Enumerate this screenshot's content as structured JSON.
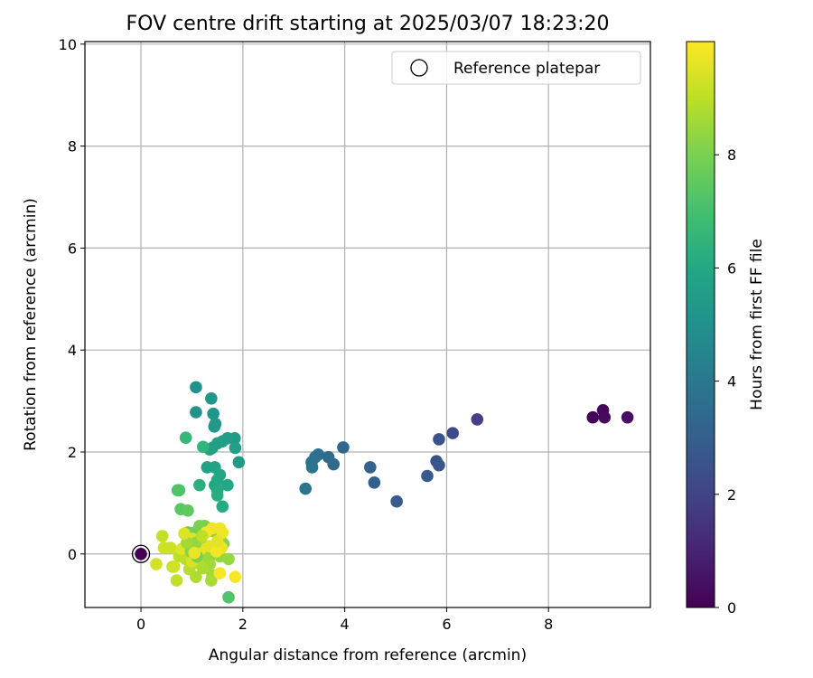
{
  "chart_data": {
    "type": "scatter",
    "title": "FOV centre drift starting at 2025/03/07 18:23:20",
    "xlabel": "Angular distance from reference (arcmin)",
    "ylabel": "Rotation from reference (arcmin)",
    "xlim": [
      -1.1,
      10.0
    ],
    "ylim": [
      -1.05,
      10.05
    ],
    "xticks": [
      0,
      2,
      4,
      6,
      8
    ],
    "yticks": [
      0,
      2,
      4,
      6,
      8,
      10
    ],
    "grid": true,
    "colormap": "viridis",
    "colorbar": {
      "label": "Hours from first FF file",
      "range": [
        0,
        10
      ],
      "ticks": [
        0,
        2,
        4,
        6,
        8
      ]
    },
    "legend": {
      "placement": "top-right",
      "entries": [
        {
          "label": "Reference platepar",
          "marker": "open-circle",
          "color": "#000000"
        }
      ]
    },
    "reference_point": {
      "x": 0.0,
      "y": 0.0
    },
    "series": [
      {
        "points": [
          [
            0.0,
            0.0,
            0.0
          ],
          [
            8.87,
            2.68,
            0.1
          ],
          [
            9.07,
            2.82,
            0.2
          ],
          [
            9.1,
            2.68,
            0.3
          ],
          [
            9.55,
            2.68,
            0.4
          ],
          [
            6.6,
            2.64,
            1.9
          ],
          [
            6.12,
            2.37,
            2.2
          ],
          [
            5.85,
            2.25,
            2.5
          ],
          [
            5.8,
            1.82,
            2.6
          ],
          [
            5.85,
            1.74,
            2.7
          ],
          [
            5.62,
            1.53,
            2.8
          ],
          [
            5.02,
            1.03,
            2.9
          ],
          [
            4.58,
            1.4,
            3.0
          ],
          [
            4.5,
            1.7,
            3.1
          ],
          [
            3.97,
            2.09,
            3.3
          ],
          [
            3.78,
            1.76,
            3.4
          ],
          [
            3.68,
            1.9,
            3.5
          ],
          [
            3.48,
            1.95,
            3.6
          ],
          [
            3.42,
            1.9,
            3.7
          ],
          [
            3.35,
            1.8,
            3.75
          ],
          [
            3.36,
            1.7,
            3.8
          ],
          [
            3.23,
            1.28,
            3.9
          ],
          [
            1.08,
            3.27,
            5.0
          ],
          [
            1.08,
            2.78,
            5.1
          ],
          [
            1.38,
            3.05,
            5.2
          ],
          [
            1.42,
            2.75,
            5.2
          ],
          [
            1.46,
            2.55,
            5.3
          ],
          [
            1.44,
            2.5,
            5.3
          ],
          [
            1.92,
            1.8,
            5.4
          ],
          [
            1.84,
            2.27,
            5.4
          ],
          [
            1.7,
            2.27,
            5.5
          ],
          [
            1.6,
            2.21,
            5.5
          ],
          [
            1.5,
            2.17,
            5.6
          ],
          [
            1.85,
            2.08,
            5.6
          ],
          [
            1.4,
            2.08,
            5.7
          ],
          [
            1.35,
            2.05,
            5.7
          ],
          [
            1.45,
            1.7,
            5.8
          ],
          [
            1.3,
            1.7,
            5.8
          ],
          [
            1.55,
            1.55,
            5.9
          ],
          [
            1.5,
            1.45,
            5.9
          ],
          [
            1.45,
            1.35,
            6.0
          ],
          [
            1.7,
            1.35,
            6.0
          ],
          [
            1.5,
            1.25,
            6.1
          ],
          [
            1.6,
            0.93,
            6.1
          ],
          [
            1.5,
            1.15,
            6.2
          ],
          [
            1.15,
            1.35,
            6.3
          ],
          [
            0.88,
            2.28,
            6.6
          ],
          [
            1.22,
            2.1,
            6.5
          ],
          [
            0.75,
            1.25,
            7.1
          ],
          [
            0.72,
            1.25,
            7.2
          ],
          [
            0.78,
            0.88,
            7.4
          ],
          [
            0.92,
            0.85,
            7.5
          ],
          [
            0.92,
            0.42,
            7.6
          ],
          [
            1.0,
            0.35,
            7.8
          ],
          [
            1.05,
            0.42,
            7.9
          ],
          [
            1.15,
            0.55,
            8.0
          ],
          [
            1.25,
            0.55,
            8.0
          ],
          [
            1.4,
            0.45,
            8.1
          ],
          [
            1.55,
            0.3,
            8.2
          ],
          [
            1.62,
            0.2,
            8.3
          ],
          [
            1.45,
            0.0,
            8.3
          ],
          [
            1.72,
            -0.1,
            8.4
          ],
          [
            1.55,
            -0.05,
            8.4
          ],
          [
            1.3,
            0.15,
            8.5
          ],
          [
            1.25,
            -0.05,
            8.5
          ],
          [
            1.35,
            -0.2,
            8.6
          ],
          [
            1.4,
            -0.42,
            8.6
          ],
          [
            1.38,
            -0.52,
            8.7
          ],
          [
            1.22,
            -0.28,
            8.7
          ],
          [
            1.12,
            -0.18,
            8.8
          ],
          [
            1.08,
            -0.45,
            8.8
          ],
          [
            0.95,
            -0.3,
            8.9
          ],
          [
            0.88,
            -0.1,
            8.9
          ],
          [
            0.75,
            -0.05,
            9.0
          ],
          [
            0.62,
            -0.25,
            9.0
          ],
          [
            0.7,
            -0.52,
            9.1
          ],
          [
            0.42,
            0.35,
            9.1
          ],
          [
            0.45,
            0.12,
            9.2
          ],
          [
            0.58,
            0.12,
            9.2
          ],
          [
            0.3,
            -0.2,
            9.3
          ],
          [
            0.65,
            -0.25,
            9.3
          ],
          [
            1.0,
            -0.15,
            9.4
          ],
          [
            0.95,
            0.15,
            9.4
          ],
          [
            0.8,
            0.1,
            9.5
          ],
          [
            1.0,
            0.3,
            9.5
          ],
          [
            1.18,
            0.1,
            9.6
          ],
          [
            1.35,
            0.15,
            9.6
          ],
          [
            1.58,
            0.12,
            9.7
          ],
          [
            1.6,
            0.42,
            9.7
          ],
          [
            1.55,
            0.5,
            9.8
          ],
          [
            1.4,
            0.5,
            9.8
          ],
          [
            1.28,
            0.42,
            9.85
          ],
          [
            1.48,
            0.05,
            9.85
          ],
          [
            1.55,
            -0.38,
            9.9
          ],
          [
            1.85,
            -0.45,
            9.9
          ],
          [
            1.72,
            -0.85,
            7.2
          ],
          [
            1.1,
            -0.05,
            8.0
          ],
          [
            0.98,
            0.05,
            8.2
          ],
          [
            1.08,
            0.22,
            8.4
          ],
          [
            0.9,
            0.22,
            8.6
          ],
          [
            1.2,
            0.35,
            9.0
          ],
          [
            0.85,
            0.4,
            9.5
          ],
          [
            1.05,
            0.02,
            9.7
          ],
          [
            1.5,
            0.25,
            9.6
          ]
        ]
      }
    ]
  }
}
